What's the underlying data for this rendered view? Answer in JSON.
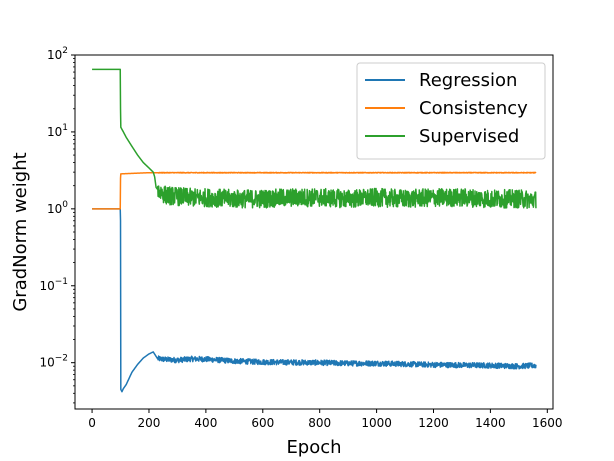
{
  "chart_data": {
    "type": "line",
    "xlabel": "Epoch",
    "ylabel": "GradNorm weight",
    "yscale": "log",
    "xlim": [
      -60,
      1620
    ],
    "ylim": [
      0.0025,
      100
    ],
    "xticks": [
      0,
      200,
      400,
      600,
      800,
      1000,
      1200,
      1400,
      1600
    ],
    "xtick_labels": [
      "0",
      "200",
      "400",
      "600",
      "800",
      "1000",
      "1200",
      "1400",
      "1600"
    ],
    "yticks": [
      0.01,
      0.1,
      1,
      10,
      100
    ],
    "ytick_labels": [
      {
        "base": "10",
        "exp": "−2"
      },
      {
        "base": "10",
        "exp": "−1"
      },
      {
        "base": "10",
        "exp": "0"
      },
      {
        "base": "10",
        "exp": "1"
      },
      {
        "base": "10",
        "exp": "2"
      }
    ],
    "grid": false,
    "legend_position": "top-right",
    "series": [
      {
        "name": "Regression",
        "color": "#1f77b4",
        "x": [
          0,
          99,
          100,
          101,
          105,
          110,
          120,
          140,
          160,
          180,
          200,
          215,
          230,
          260,
          300,
          350,
          400,
          500,
          600,
          700,
          800,
          900,
          1000,
          1100,
          1200,
          1300,
          1400,
          1500,
          1560
        ],
        "y": [
          1.0,
          1.0,
          0.7,
          0.0045,
          0.0042,
          0.0046,
          0.0052,
          0.0075,
          0.0095,
          0.0115,
          0.013,
          0.0138,
          0.0113,
          0.011,
          0.0108,
          0.0112,
          0.0111,
          0.0105,
          0.0102,
          0.0101,
          0.01,
          0.0098,
          0.0098,
          0.0096,
          0.0094,
          0.0093,
          0.0092,
          0.009,
          0.0092
        ]
      },
      {
        "name": "Consistency",
        "color": "#ff7f0e",
        "x": [
          0,
          99,
          100,
          101,
          150,
          200,
          220,
          300,
          600,
          900,
          1200,
          1560
        ],
        "y": [
          1.0,
          1.0,
          2.5,
          2.85,
          2.9,
          2.95,
          2.95,
          2.95,
          2.95,
          2.95,
          2.95,
          2.95
        ]
      },
      {
        "name": "Supervised",
        "color": "#2ca02c",
        "x": [
          0,
          99,
          100,
          101,
          110,
          120,
          140,
          160,
          180,
          200,
          215,
          220,
          225,
          235,
          260,
          300,
          350,
          400,
          500,
          600,
          700,
          800,
          900,
          1000,
          1100,
          1200,
          1300,
          1400,
          1500,
          1560
        ],
        "y": [
          65,
          65,
          20,
          11.5,
          10,
          8.5,
          6.5,
          5.0,
          4.0,
          3.4,
          3.0,
          2.6,
          1.9,
          1.7,
          1.5,
          1.45,
          1.4,
          1.4,
          1.35,
          1.35,
          1.4,
          1.4,
          1.35,
          1.4,
          1.35,
          1.4,
          1.4,
          1.35,
          1.35,
          1.3
        ]
      }
    ]
  }
}
